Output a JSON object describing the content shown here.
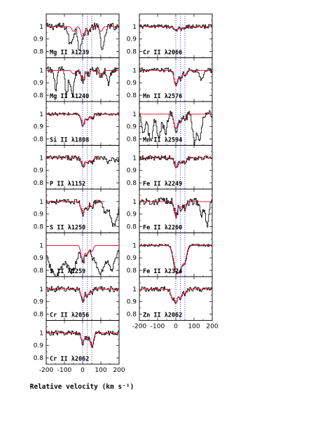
{
  "chart_data": {
    "type": "line",
    "xlabel": "Relative velocity (km s⁻¹)",
    "xlim": [
      -200,
      200
    ],
    "ylim": [
      0.75,
      1.1
    ],
    "x_ticks": [
      "-200",
      "-100",
      "0",
      "100",
      "200"
    ],
    "y_ticks": [
      "1",
      "0.9",
      "0.8"
    ],
    "component_velocities": [
      0,
      25,
      50
    ],
    "colors": {
      "data": "#000000",
      "model": "#e0001a",
      "components": "#3333dd"
    },
    "panels": [
      {
        "label": "Mg II λ1239",
        "column": 0,
        "row": 0,
        "lines": [
          [
            0,
            0.91,
            9
          ],
          [
            -50,
            0.96,
            9
          ],
          [
            30,
            0.96,
            9
          ],
          [
            100,
            0.96,
            9
          ]
        ],
        "model_range": [
          -200,
          200
        ],
        "extra": [
          [
            -70,
            0.86,
            10
          ],
          [
            -20,
            0.83,
            8
          ],
          [
            110,
            0.84,
            10
          ]
        ],
        "noise": 0.018
      },
      {
        "label": "Mg II λ1240",
        "column": 0,
        "row": 1,
        "lines": [
          [
            0,
            0.92,
            9
          ],
          [
            -50,
            0.97,
            9
          ],
          [
            30,
            0.97,
            9
          ],
          [
            100,
            0.95,
            9
          ]
        ],
        "model_range": [
          -200,
          200
        ],
        "extra": [
          [
            -150,
            0.86,
            8
          ],
          [
            -90,
            0.8,
            8
          ],
          [
            -60,
            0.8,
            8
          ],
          [
            140,
            0.9,
            8
          ]
        ],
        "noise": 0.02
      },
      {
        "label": "Si II λ1808",
        "column": 0,
        "row": 2,
        "lines": [
          [
            0,
            0.9,
            8
          ],
          [
            25,
            0.95,
            8
          ],
          [
            50,
            0.96,
            8
          ]
        ],
        "model_range": [
          -200,
          200
        ],
        "extra": [],
        "noise": 0.008
      },
      {
        "label": "P II λ1152",
        "column": 0,
        "row": 3,
        "lines": [
          [
            0,
            0.93,
            8
          ],
          [
            25,
            0.96,
            8
          ],
          [
            50,
            0.97,
            8
          ]
        ],
        "model_range": [
          -200,
          100
        ],
        "extra": [
          [
            140,
            0.96,
            10
          ],
          [
            180,
            0.97,
            10
          ]
        ],
        "noise": 0.012
      },
      {
        "label": "S II λ1250",
        "column": 0,
        "row": 4,
        "lines": [
          [
            0,
            0.9,
            9
          ],
          [
            25,
            0.95,
            8
          ],
          [
            50,
            0.96,
            8
          ]
        ],
        "model_range": [
          -200,
          120
        ],
        "extra": [
          [
            170,
            0.81,
            18
          ],
          [
            120,
            0.92,
            10
          ]
        ],
        "noise": 0.012
      },
      {
        "label": "S II λ1259",
        "column": 0,
        "row": 5,
        "lines": [
          [
            0,
            0.88,
            9
          ],
          [
            25,
            0.93,
            8
          ],
          [
            50,
            0.95,
            8
          ]
        ],
        "model_range": [
          -200,
          200
        ],
        "extra": [
          [
            -150,
            0.76,
            35
          ],
          [
            -60,
            0.8,
            25
          ],
          [
            95,
            0.78,
            25
          ],
          [
            160,
            0.82,
            18
          ]
        ],
        "noise": 0.014
      },
      {
        "label": "Cr II λ2056",
        "column": 0,
        "row": 6,
        "lines": [
          [
            0,
            0.9,
            8
          ],
          [
            25,
            0.95,
            8
          ],
          [
            50,
            0.97,
            8
          ]
        ],
        "model_range": [
          -200,
          200
        ],
        "extra": [],
        "noise": 0.014
      },
      {
        "label": "Cr II λ2062",
        "column": 0,
        "row": 7,
        "lines": [
          [
            0,
            0.92,
            8
          ],
          [
            25,
            0.95,
            8
          ],
          [
            50,
            0.89,
            9
          ]
        ],
        "model_range": [
          -200,
          200
        ],
        "extra": [],
        "noise": 0.012
      },
      {
        "label": "Cr II λ2066",
        "column": 1,
        "row": 0,
        "lines": [
          [
            0,
            0.97,
            9
          ],
          [
            25,
            0.98,
            8
          ],
          [
            50,
            0.99,
            8
          ]
        ],
        "model_range": [
          -200,
          200
        ],
        "extra": [],
        "noise": 0.01
      },
      {
        "label": "Mn II λ2576",
        "column": 1,
        "row": 1,
        "lines": [
          [
            0,
            0.88,
            9
          ],
          [
            25,
            0.93,
            8
          ],
          [
            50,
            0.96,
            8
          ]
        ],
        "model_range": [
          -200,
          200
        ],
        "extra": [
          [
            140,
            0.93,
            10
          ]
        ],
        "noise": 0.012
      },
      {
        "label": "Mn II λ2594",
        "column": 1,
        "row": 2,
        "lines": [
          [
            0,
            0.88,
            9
          ],
          [
            25,
            0.93,
            8
          ],
          [
            50,
            0.96,
            8
          ]
        ],
        "model_range": [
          -200,
          200
        ],
        "extra": [
          [
            -180,
            0.85,
            10
          ],
          [
            -140,
            0.78,
            12
          ],
          [
            -95,
            0.8,
            10
          ],
          [
            -60,
            0.85,
            10
          ],
          [
            100,
            0.78,
            10
          ],
          [
            130,
            0.8,
            10
          ]
        ],
        "noise": 0.018
      },
      {
        "label": "Fe II λ2249",
        "column": 1,
        "row": 3,
        "lines": [
          [
            0,
            0.92,
            8
          ],
          [
            25,
            0.96,
            8
          ],
          [
            50,
            0.96,
            8
          ]
        ],
        "model_range": [
          -200,
          200
        ],
        "extra": [],
        "noise": 0.012
      },
      {
        "label": "Fe II λ2260",
        "column": 1,
        "row": 4,
        "lines": [
          [
            0,
            0.88,
            8
          ],
          [
            25,
            0.95,
            8
          ],
          [
            50,
            0.94,
            8
          ]
        ],
        "model_range": [
          -200,
          200
        ],
        "extra": [
          [
            140,
            0.88,
            8
          ],
          [
            170,
            0.82,
            8
          ]
        ],
        "noise": 0.018
      },
      {
        "label": "Fe II λ2374",
        "column": 1,
        "row": 5,
        "lines": [
          [
            0,
            0.8,
            14
          ],
          [
            25,
            0.84,
            12
          ],
          [
            50,
            0.88,
            10
          ]
        ],
        "model_range": [
          -200,
          200
        ],
        "extra": [],
        "noise": 0.006
      },
      {
        "label": "Zn II λ2062",
        "column": 1,
        "row": 6,
        "lines": [
          [
            0,
            0.89,
            9
          ],
          [
            -20,
            0.94,
            9
          ],
          [
            25,
            0.93,
            8
          ],
          [
            50,
            0.96,
            8
          ]
        ],
        "model_range": [
          -200,
          200
        ],
        "extra": [],
        "noise": 0.012
      }
    ]
  }
}
